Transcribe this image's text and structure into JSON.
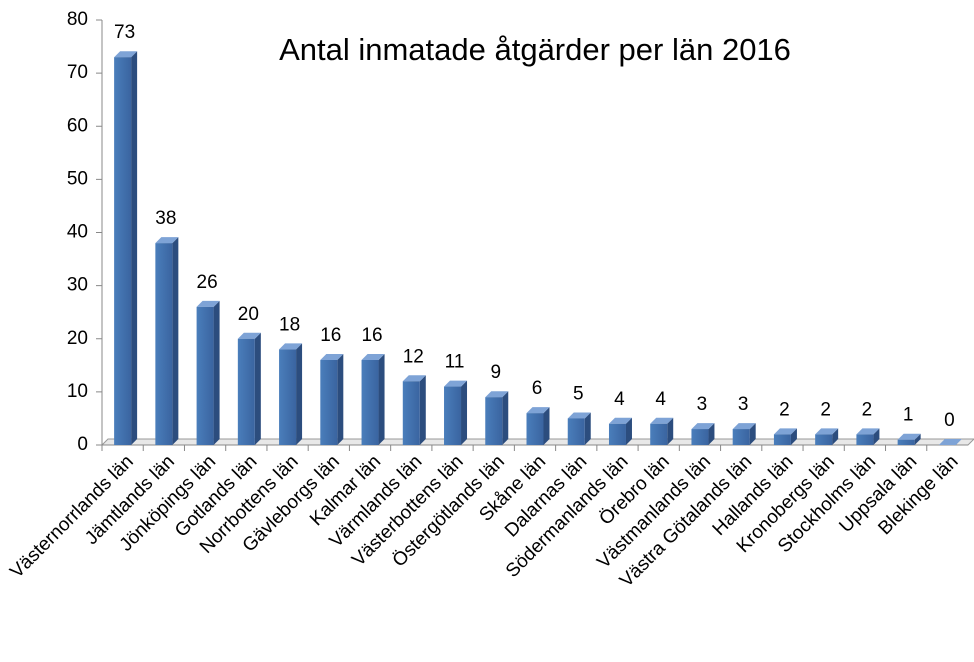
{
  "chart_data": {
    "type": "bar",
    "title": "Antal inmatade åtgärder per län 2016",
    "categories": [
      "Västernorrlands län",
      "Jämtlands län",
      "Jönköpings län",
      "Gotlands län",
      "Norrbottens län",
      "Gävleborgs län",
      "Kalmar län",
      "Värmlands län",
      "Västerbottens län",
      "Östergötlands län",
      "Skåne län",
      "Dalarnas län",
      "Södermanlands län",
      "Örebro län",
      "Västmanlands län",
      "Västra Götalands län",
      "Hallands län",
      "Kronobergs län",
      "Stockholms län",
      "Uppsala län",
      "Blekinge län"
    ],
    "values": [
      73,
      38,
      26,
      20,
      18,
      16,
      16,
      12,
      11,
      9,
      6,
      5,
      4,
      4,
      3,
      3,
      2,
      2,
      2,
      1,
      0
    ],
    "color": "#4a7ebb",
    "ylim": [
      0,
      80
    ],
    "yticks": [
      0,
      10,
      20,
      30,
      40,
      50,
      60,
      70,
      80
    ],
    "grid": false
  }
}
